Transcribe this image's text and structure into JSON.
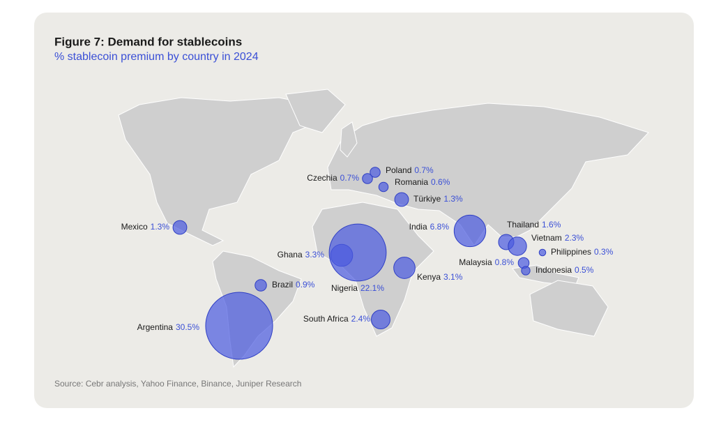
{
  "chart_data": {
    "type": "bubble-map",
    "title": "Figure 7: Demand for stablecoins",
    "subtitle": "% stablecoin premium by country in 2024",
    "source": "Source: Cebr analysis, Yahoo Finance, Binance, Juniper Research",
    "color": "#4a5ae0",
    "categories": [
      "Czechia",
      "Poland",
      "Romania",
      "Türkiye",
      "Mexico",
      "India",
      "Thailand",
      "Vietnam",
      "Philippines",
      "Malaysia",
      "Indonesia",
      "Ghana",
      "Nigeria",
      "Kenya",
      "Brazil",
      "South Africa",
      "Argentina"
    ],
    "values": [
      0.7,
      0.7,
      0.6,
      1.3,
      1.3,
      6.8,
      1.6,
      2.3,
      0.3,
      0.8,
      0.5,
      3.3,
      22.1,
      3.1,
      0.9,
      2.4,
      30.5
    ],
    "value_labels": [
      "0.7%",
      "0.7%",
      "0.6%",
      "1.3%",
      "1.3%",
      "6.8%",
      "1.6%",
      "2.3%",
      "0.3%",
      "0.8%",
      "0.5%",
      "3.3%",
      "22.1%",
      "3.1%",
      "0.9%",
      "2.4%",
      "30.5%"
    ]
  }
}
